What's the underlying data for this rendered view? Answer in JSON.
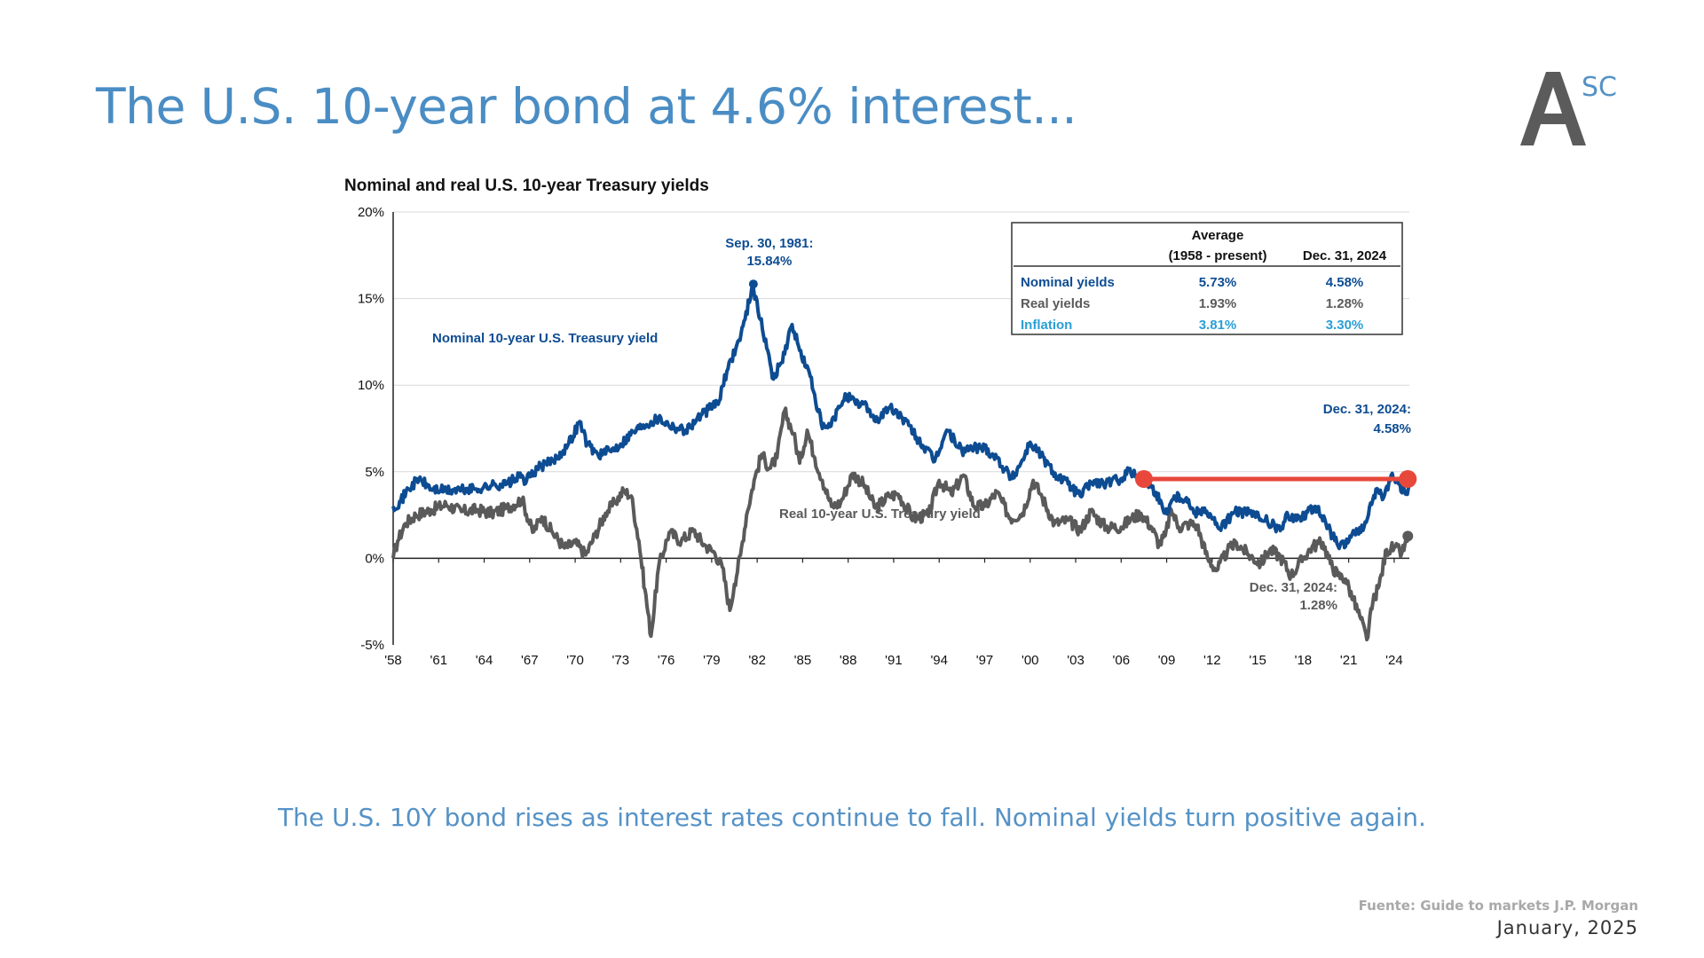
{
  "slide": {
    "title": "The U.S. 10-year bond at 4.6% interest...",
    "caption": "The U.S. 10Y bond rises as interest rates continue to fall. Nominal yields turn positive again.",
    "source": "Fuente: Guide to markets J.P. Morgan",
    "date": "January, 2025"
  },
  "logo": {
    "letter": "A",
    "superscript": "SC"
  },
  "colors": {
    "title": "#4a8dc4",
    "nominal": "#0d4c92",
    "real": "#5a5a5a",
    "inflation": "#2a9fd6",
    "highlight": "#e8473c"
  },
  "chart_data": {
    "type": "line",
    "title": "Nominal and real U.S. 10-year Treasury yields",
    "y_ticks": [
      "20%",
      "15%",
      "10%",
      "5%",
      "0%",
      "-5%"
    ],
    "ylim": [
      -5,
      20
    ],
    "x_ticks": [
      "'58",
      "'61",
      "'64",
      "'67",
      "'70",
      "'73",
      "'76",
      "'79",
      "'82",
      "'85",
      "'88",
      "'91",
      "'94",
      "'97",
      "'00",
      "'03",
      "'06",
      "'09",
      "'12",
      "'15",
      "'18",
      "'21",
      "'24"
    ],
    "xlim": [
      1958,
      2025
    ],
    "grid": true,
    "series": [
      {
        "name": "Nominal 10-year U.S. Treasury yield",
        "x": [
          1958.0,
          1958.5,
          1959.0,
          1959.7,
          1960.5,
          1961.5,
          1962.5,
          1963.5,
          1964.5,
          1965.5,
          1966.3,
          1966.8,
          1967.5,
          1968.5,
          1969.5,
          1970.3,
          1970.8,
          1971.5,
          1972.3,
          1973.0,
          1973.8,
          1974.5,
          1975.5,
          1976.5,
          1977.3,
          1978.0,
          1978.8,
          1979.5,
          1980.0,
          1980.3,
          1980.8,
          1981.2,
          1981.7,
          1982.2,
          1982.7,
          1983.0,
          1983.6,
          1984.3,
          1984.8,
          1985.5,
          1986.3,
          1986.8,
          1987.5,
          1987.8,
          1988.5,
          1989.2,
          1989.8,
          1990.7,
          1991.5,
          1992.5,
          1993.7,
          1994.5,
          1995.5,
          1996.3,
          1997.0,
          1997.8,
          1998.8,
          1999.5,
          2000.0,
          2000.5,
          2001.5,
          2002.5,
          2003.3,
          2004.0,
          2005.0,
          2006.0,
          2006.5,
          2007.0,
          2007.6,
          2008.3,
          2008.9,
          2009.5,
          2010.3,
          2010.8,
          2011.5,
          2012.5,
          2013.5,
          2014.5,
          2015.5,
          2016.5,
          2017.0,
          2017.7,
          2018.8,
          2019.5,
          2020.3,
          2020.8,
          2021.3,
          2021.8,
          2022.3,
          2022.8,
          2023.3,
          2023.8,
          2024.3,
          2024.8,
          2025.0
        ],
        "values": [
          3.0,
          3.3,
          4.0,
          4.6,
          4.0,
          3.9,
          3.95,
          4.0,
          4.2,
          4.3,
          4.7,
          4.5,
          5.2,
          5.6,
          6.5,
          7.9,
          6.6,
          6.0,
          6.2,
          6.6,
          7.3,
          7.7,
          8.1,
          7.6,
          7.4,
          8.0,
          8.6,
          9.1,
          10.8,
          11.5,
          12.6,
          13.8,
          15.84,
          13.8,
          12.0,
          10.4,
          11.3,
          13.5,
          12.0,
          10.5,
          7.5,
          7.6,
          8.8,
          9.5,
          8.9,
          8.9,
          7.9,
          8.7,
          8.2,
          7.0,
          5.6,
          7.4,
          6.2,
          6.4,
          6.4,
          5.8,
          4.6,
          5.7,
          6.7,
          6.2,
          5.0,
          4.3,
          3.6,
          4.4,
          4.3,
          4.6,
          5.1,
          4.7,
          4.5,
          3.8,
          2.6,
          3.6,
          3.5,
          2.6,
          2.9,
          1.7,
          2.7,
          2.6,
          2.2,
          1.6,
          2.5,
          2.3,
          3.0,
          2.0,
          0.7,
          0.7,
          1.6,
          1.5,
          2.5,
          4.0,
          3.5,
          4.8,
          4.3,
          3.7,
          4.58
        ]
      },
      {
        "name": "Real 10-year U.S. Treasury yield",
        "x": [
          1958.0,
          1958.3,
          1958.8,
          1959.5,
          1960.5,
          1961.5,
          1962.5,
          1963.5,
          1964.5,
          1965.5,
          1966.5,
          1967.2,
          1967.8,
          1968.5,
          1969.3,
          1970.0,
          1970.7,
          1971.3,
          1972.0,
          1972.6,
          1973.2,
          1973.7,
          1974.2,
          1974.6,
          1975.0,
          1975.5,
          1976.2,
          1977.0,
          1977.8,
          1978.5,
          1979.2,
          1979.7,
          1980.2,
          1980.5,
          1980.9,
          1981.3,
          1981.8,
          1982.3,
          1982.8,
          1983.3,
          1983.8,
          1984.4,
          1984.8,
          1985.3,
          1985.8,
          1986.3,
          1986.9,
          1987.5,
          1988.3,
          1989.0,
          1989.8,
          1990.7,
          1991.3,
          1992.3,
          1993.3,
          1994.0,
          1994.8,
          1995.6,
          1996.3,
          1997.0,
          1997.8,
          1998.7,
          1999.5,
          2000.2,
          2000.8,
          2001.6,
          2002.5,
          2003.3,
          2004.0,
          2005.0,
          2006.0,
          2006.7,
          2007.3,
          2008.0,
          2008.5,
          2008.9,
          2009.3,
          2009.8,
          2010.5,
          2011.0,
          2011.7,
          2012.3,
          2013.0,
          2013.6,
          2014.4,
          2015.2,
          2015.8,
          2016.5,
          2017.2,
          2018.0,
          2018.6,
          2019.3,
          2019.8,
          2020.3,
          2020.8,
          2021.3,
          2021.8,
          2022.2,
          2022.6,
          2023.0,
          2023.5,
          2024.0,
          2024.5,
          2025.0
        ],
        "values": [
          0.0,
          1.0,
          2.0,
          2.5,
          2.8,
          3.1,
          2.7,
          2.8,
          2.6,
          2.9,
          3.4,
          1.5,
          2.4,
          1.5,
          0.6,
          0.9,
          0.2,
          1.3,
          2.6,
          3.2,
          3.9,
          3.6,
          1.0,
          -1.8,
          -4.5,
          -0.5,
          1.5,
          1.0,
          1.6,
          0.8,
          0.3,
          -0.5,
          -3.0,
          -1.5,
          0.2,
          2.5,
          4.5,
          6.0,
          5.2,
          5.8,
          8.5,
          7.2,
          5.5,
          7.4,
          5.8,
          4.5,
          3.0,
          3.2,
          4.9,
          4.3,
          2.9,
          3.6,
          3.7,
          2.3,
          2.5,
          4.5,
          3.7,
          4.8,
          3.0,
          3.0,
          3.8,
          2.3,
          2.6,
          4.5,
          3.5,
          2.0,
          2.2,
          1.6,
          2.7,
          1.8,
          1.8,
          2.3,
          2.6,
          1.8,
          0.8,
          1.3,
          2.8,
          1.8,
          2.0,
          1.9,
          0.0,
          -0.7,
          0.4,
          0.9,
          0.2,
          -0.3,
          0.5,
          0.1,
          -1.0,
          0.0,
          0.7,
          0.9,
          -0.3,
          -1.0,
          -1.2,
          -2.4,
          -3.5,
          -4.7,
          -2.5,
          -1.6,
          0.5,
          0.6,
          0.3,
          1.28
        ]
      }
    ],
    "reference_line": {
      "from_x": 2007.5,
      "to_x": 2024.9,
      "value": 4.58
    },
    "series_labels": {
      "nominal": "Nominal 10-year U.S.  Treasury yield",
      "real": "Real 10-year U.S.  Treasury yield"
    },
    "annotations": {
      "peak_line1": "Sep. 30, 1981:",
      "peak_line2": "15.84%",
      "peak_x": 1981.75,
      "peak_value": 15.84,
      "nominal_end_line1": "Dec. 31, 2024:",
      "nominal_end_line2": "4.58%",
      "real_end_line1": "Dec. 31, 2024:",
      "real_end_line2": "1.28%",
      "end_x": 2024.9,
      "nominal_end_value": 4.58,
      "real_end_value": 1.28
    },
    "table": {
      "header_avg_line1": "Average",
      "header_avg_line2": "(1958 - present)",
      "header_date": "Dec. 31, 2024",
      "rows": [
        {
          "label": "Nominal yields",
          "average": "5.73%",
          "latest": "4.58%"
        },
        {
          "label": "Real yields",
          "average": "1.93%",
          "latest": "1.28%"
        },
        {
          "label": "Inflation",
          "average": "3.81%",
          "latest": "3.30%"
        }
      ]
    }
  }
}
